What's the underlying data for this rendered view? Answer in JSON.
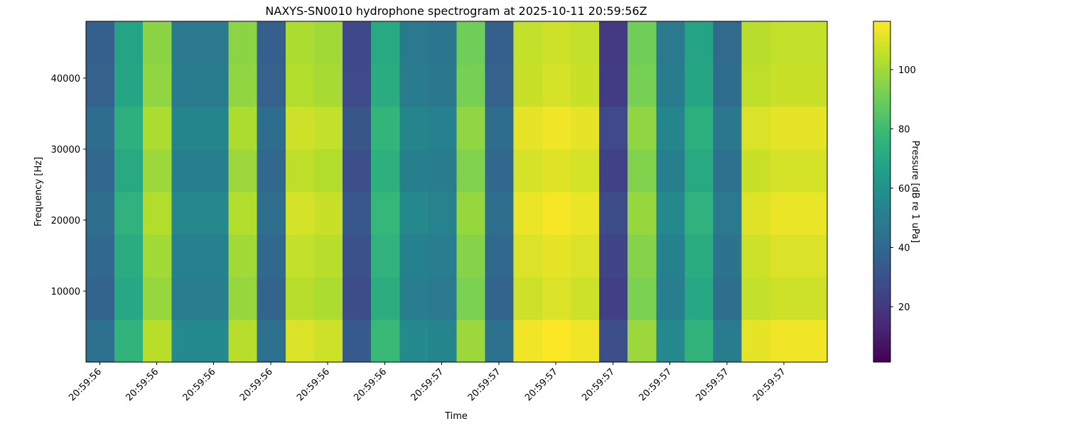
{
  "chart_data": {
    "type": "heatmap",
    "title": "NAXYS-SN0010 hydrophone spectrogram at 2025-10-11 20:59:56Z",
    "xlabel": "Time",
    "ylabel": "Frequency [Hz]",
    "colorbar_label": "Pressure [dB re 1 uPa]",
    "colormap": "viridis",
    "x": [
      0.401,
      0.451,
      0.501,
      0.551,
      0.601,
      0.651,
      0.701,
      0.751,
      0.801,
      0.851,
      0.901,
      0.951,
      1.001,
      1.051,
      1.101,
      1.151,
      1.201,
      1.251,
      1.301,
      1.351,
      1.401,
      1.451,
      1.501,
      1.551,
      1.601,
      1.651
    ],
    "y": [
      3000,
      9000,
      15000,
      21000,
      27000,
      33000,
      39000,
      45000
    ],
    "z": [
      [
        44,
        76,
        104,
        56,
        56,
        104,
        44,
        110,
        108,
        34,
        79,
        56,
        54,
        99,
        44,
        114,
        116,
        114,
        29,
        99,
        56,
        76,
        49,
        112,
        114,
        114
      ],
      [
        38,
        70,
        98,
        50,
        50,
        98,
        38,
        104,
        102,
        28,
        73,
        50,
        48,
        93,
        38,
        108,
        110,
        108,
        23,
        93,
        50,
        70,
        43,
        106,
        108,
        108
      ],
      [
        40,
        72,
        100,
        52,
        52,
        100,
        40,
        106,
        104,
        30,
        75,
        52,
        50,
        95,
        40,
        110,
        112,
        110,
        25,
        95,
        52,
        72,
        45,
        108,
        110,
        110
      ],
      [
        43,
        75,
        103,
        55,
        55,
        103,
        43,
        109,
        107,
        33,
        78,
        55,
        53,
        98,
        43,
        113,
        115,
        113,
        28,
        98,
        55,
        75,
        48,
        111,
        113,
        113
      ],
      [
        39,
        71,
        99,
        51,
        51,
        99,
        39,
        105,
        103,
        29,
        74,
        51,
        49,
        94,
        39,
        109,
        111,
        109,
        24,
        94,
        51,
        71,
        44,
        107,
        109,
        109
      ],
      [
        42,
        74,
        102,
        54,
        54,
        102,
        42,
        108,
        106,
        32,
        77,
        54,
        52,
        97,
        42,
        112,
        114,
        112,
        27,
        97,
        54,
        74,
        47,
        110,
        112,
        112
      ],
      [
        37,
        69,
        97,
        49,
        49,
        97,
        37,
        103,
        101,
        27,
        72,
        49,
        47,
        92,
        37,
        107,
        109,
        107,
        22,
        92,
        49,
        69,
        42,
        105,
        107,
        107
      ],
      [
        36,
        68,
        96,
        48,
        48,
        96,
        36,
        102,
        100,
        26,
        71,
        48,
        46,
        91,
        36,
        106,
        108,
        106,
        21,
        91,
        48,
        68,
        41,
        104,
        106,
        106
      ]
    ],
    "xlim": [
      0.376,
      1.676
    ],
    "ylim": [
      0,
      48000
    ],
    "clim": [
      1.3,
      116.3
    ],
    "xticks": [
      {
        "value": 0.4,
        "label": "20:59:56"
      },
      {
        "value": 0.5,
        "label": "20:59:56"
      },
      {
        "value": 0.6,
        "label": "20:59:56"
      },
      {
        "value": 0.7,
        "label": "20:59:56"
      },
      {
        "value": 0.8,
        "label": "20:59:56"
      },
      {
        "value": 0.9,
        "label": "20:59:56"
      },
      {
        "value": 1.0,
        "label": "20:59:57"
      },
      {
        "value": 1.1,
        "label": "20:59:57"
      },
      {
        "value": 1.2,
        "label": "20:59:57"
      },
      {
        "value": 1.3,
        "label": "20:59:57"
      },
      {
        "value": 1.4,
        "label": "20:59:57"
      },
      {
        "value": 1.5,
        "label": "20:59:57"
      },
      {
        "value": 1.6,
        "label": "20:59:57"
      }
    ],
    "yticks": [
      10000,
      20000,
      30000,
      40000
    ],
    "cticks": [
      20,
      40,
      60,
      80,
      100
    ]
  }
}
